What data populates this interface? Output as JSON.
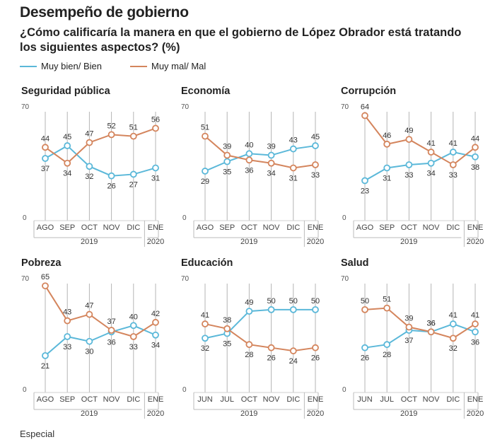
{
  "title": "Desempeño de gobierno",
  "subtitle": "¿Cómo calificaría la manera en que el gobierno de López Obrador está tratando los siguientes aspectos? (%)",
  "legend": {
    "good": "Muy bien/ Bien",
    "bad": "Muy mal/ Mal"
  },
  "colors": {
    "good": "#5bb8d9",
    "bad": "#d4855d"
  },
  "source": "Especial",
  "chart_data": [
    {
      "type": "line",
      "title": "Seguridad pública",
      "x": [
        "AGO",
        "SEP",
        "OCT",
        "NOV",
        "DIC",
        "ENE"
      ],
      "year_labels": [
        "2019",
        "2020"
      ],
      "ylim": [
        0,
        70
      ],
      "yticks": [
        "0",
        "70"
      ],
      "series": [
        {
          "name": "Muy bien/ Bien",
          "values": [
            37,
            45,
            32,
            26,
            27,
            31
          ]
        },
        {
          "name": "Muy mal/ Mal",
          "values": [
            44,
            34,
            47,
            52,
            51,
            56
          ]
        }
      ]
    },
    {
      "type": "line",
      "title": "Economía",
      "x": [
        "AGO",
        "SEP",
        "OCT",
        "NOV",
        "DIC",
        "ENE"
      ],
      "year_labels": [
        "2019",
        "2020"
      ],
      "ylim": [
        0,
        70
      ],
      "yticks": [
        "0",
        "70"
      ],
      "series": [
        {
          "name": "Muy bien/ Bien",
          "values": [
            29,
            35,
            40,
            39,
            43,
            45
          ]
        },
        {
          "name": "Muy mal/ Mal",
          "values": [
            51,
            39,
            36,
            34,
            31,
            33
          ]
        }
      ]
    },
    {
      "type": "line",
      "title": "Corrupción",
      "x": [
        "AGO",
        "SEP",
        "OCT",
        "NOV",
        "DIC",
        "ENE"
      ],
      "year_labels": [
        "2019",
        "2020"
      ],
      "ylim": [
        0,
        70
      ],
      "yticks": [
        "0",
        "70"
      ],
      "series": [
        {
          "name": "Muy bien/ Bien",
          "values": [
            23,
            31,
            33,
            34,
            41,
            38
          ]
        },
        {
          "name": "Muy mal/ Mal",
          "values": [
            64,
            46,
            49,
            41,
            33,
            44
          ]
        }
      ]
    },
    {
      "type": "line",
      "title": "Pobreza",
      "x": [
        "AGO",
        "SEP",
        "OCT",
        "NOV",
        "DIC",
        "ENE"
      ],
      "year_labels": [
        "2019",
        "2020"
      ],
      "ylim": [
        0,
        70
      ],
      "yticks": [
        "0",
        "70"
      ],
      "series": [
        {
          "name": "Muy bien/ Bien",
          "values": [
            21,
            33,
            30,
            36,
            40,
            34
          ]
        },
        {
          "name": "Muy mal/ Mal",
          "values": [
            65,
            43,
            47,
            37,
            33,
            42
          ]
        }
      ]
    },
    {
      "type": "line",
      "title": "Educación",
      "x": [
        "JUN",
        "JUL",
        "OCT",
        "NOV",
        "DIC",
        "ENE"
      ],
      "year_labels": [
        "2019",
        "2020"
      ],
      "ylim": [
        0,
        70
      ],
      "yticks": [
        "0",
        "70"
      ],
      "series": [
        {
          "name": "Muy bien/ Bien",
          "values": [
            32,
            35,
            49,
            50,
            50,
            50
          ]
        },
        {
          "name": "Muy mal/ Mal",
          "values": [
            41,
            38,
            28,
            26,
            24,
            26
          ]
        }
      ]
    },
    {
      "type": "line",
      "title": "Salud",
      "x": [
        "JUN",
        "JUL",
        "OCT",
        "NOV",
        "DIC",
        "ENE"
      ],
      "year_labels": [
        "2019",
        "2020"
      ],
      "ylim": [
        0,
        70
      ],
      "yticks": [
        "0",
        "70"
      ],
      "series": [
        {
          "name": "Muy bien/ Bien",
          "values": [
            26,
            28,
            37,
            36,
            41,
            36
          ]
        },
        {
          "name": "Muy mal/ Mal",
          "values": [
            50,
            51,
            39,
            36,
            32,
            41
          ]
        }
      ]
    }
  ]
}
